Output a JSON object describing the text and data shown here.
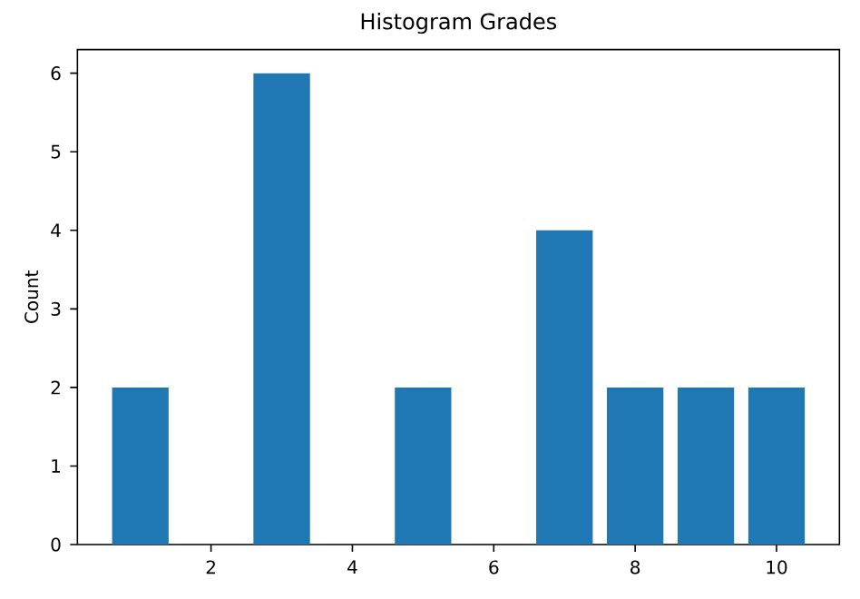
{
  "chart_data": {
    "type": "histogram",
    "title": "Histogram Grades",
    "ylabel": "Count",
    "bins": [
      0.5,
      1.5,
      2.5,
      3.5,
      4.5,
      5.5,
      6.5,
      7.5,
      8.5,
      9.5,
      10.5
    ],
    "values": [
      2,
      0,
      6,
      0,
      2,
      0,
      4,
      2,
      2,
      2
    ],
    "color": "#1f77b4",
    "xlim": [
      0.11,
      10.89
    ],
    "xticks": [
      2,
      4,
      6,
      8,
      10
    ],
    "ylim": [
      0,
      6.3
    ],
    "yticks": [
      0,
      1,
      2,
      3,
      4,
      5,
      6
    ]
  }
}
